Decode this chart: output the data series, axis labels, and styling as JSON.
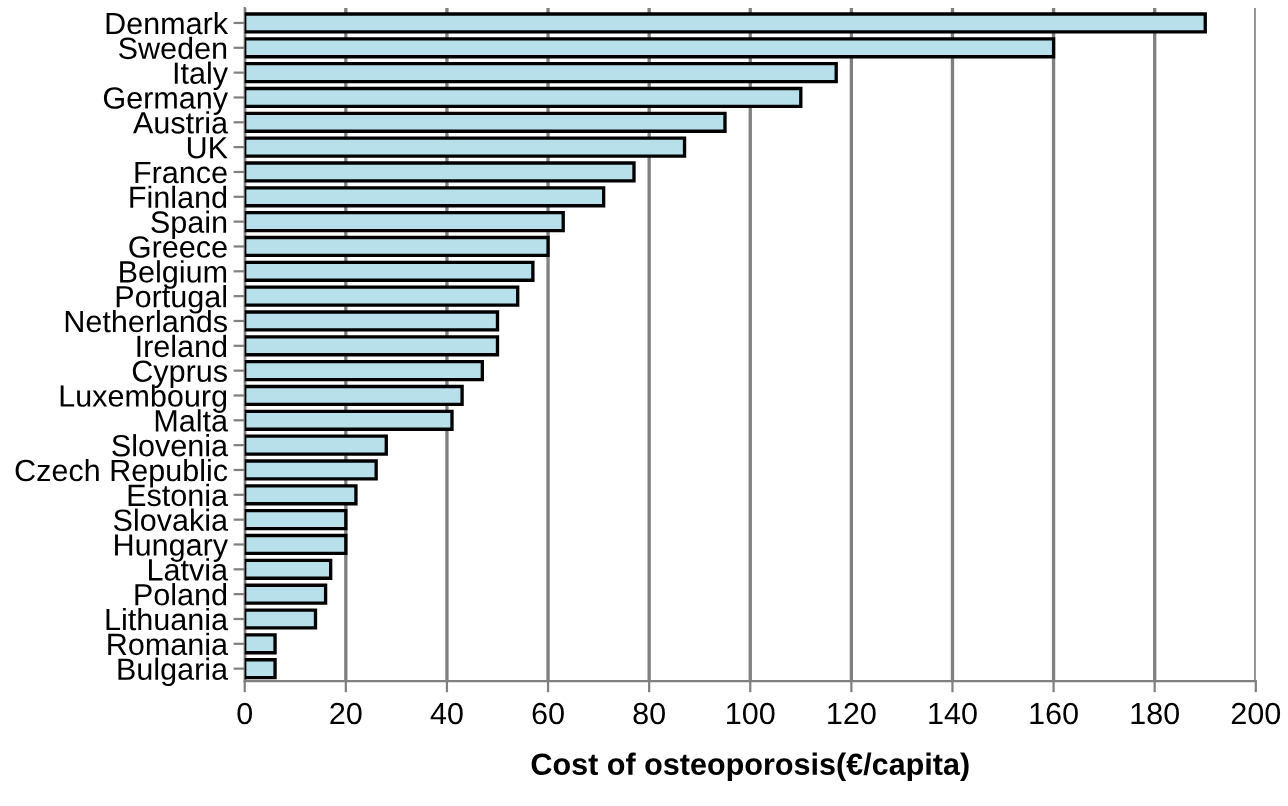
{
  "chart_data": {
    "type": "bar",
    "orientation": "horizontal",
    "xlabel": "Cost of osteoporosis(€/capita)",
    "categories": [
      "Denmark",
      "Sweden",
      "Italy",
      "Germany",
      "Austria",
      "UK",
      "France",
      "Finland",
      "Spain",
      "Greece",
      "Belgium",
      "Portugal",
      "Netherlands",
      "Ireland",
      "Cyprus",
      "Luxembourg",
      "Malta",
      "Slovenia",
      "Czech Republic",
      "Estonia",
      "Slovakia",
      "Hungary",
      "Latvia",
      "Poland",
      "Lithuania",
      "Romania",
      "Bulgaria"
    ],
    "values": [
      190,
      160,
      117,
      110,
      95,
      87,
      77,
      71,
      63,
      60,
      57,
      54,
      50,
      50,
      47,
      43,
      41,
      28,
      26,
      22,
      20,
      20,
      17,
      16,
      14,
      6,
      6
    ],
    "color": "#b8e0ea",
    "xlim": [
      0,
      200
    ],
    "xticks": [
      0,
      20,
      40,
      60,
      80,
      100,
      120,
      140,
      160,
      180,
      200
    ],
    "grid": "x",
    "legend": false
  }
}
